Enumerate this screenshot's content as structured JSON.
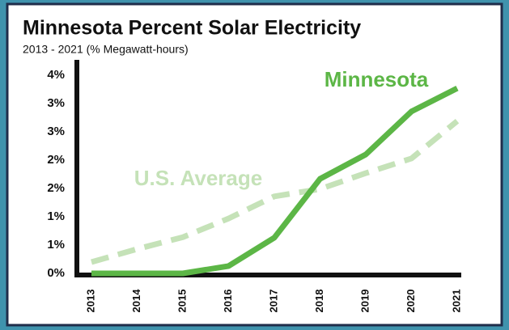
{
  "chart_data": {
    "type": "line",
    "title": "Minnesota Percent Solar Electricity",
    "subtitle": "2013 - 2021 (% Megawatt-hours)",
    "categories": [
      "2013",
      "2014",
      "2015",
      "2016",
      "2017",
      "2018",
      "2019",
      "2020",
      "2021"
    ],
    "series": [
      {
        "name": "Minnesota",
        "color": "#5cb646",
        "dashed": false,
        "values": [
          0,
          0,
          0,
          0.13,
          0.63,
          1.67,
          2.1,
          2.86,
          3.27
        ]
      },
      {
        "name": "U.S. Average",
        "color": "#c5e2b8",
        "dashed": true,
        "values": [
          0.2,
          0.43,
          0.64,
          0.97,
          1.36,
          1.49,
          1.77,
          2.03,
          2.69
        ]
      }
    ],
    "ylim": [
      0,
      3.5
    ],
    "yticks": [
      {
        "value": 0,
        "label": "0%"
      },
      {
        "value": 0.5,
        "label": "1%"
      },
      {
        "value": 1,
        "label": "1%"
      },
      {
        "value": 1.5,
        "label": "2%"
      },
      {
        "value": 2,
        "label": "2%"
      },
      {
        "value": 2.5,
        "label": "3%"
      },
      {
        "value": 3,
        "label": "3%"
      },
      {
        "value": 3.5,
        "label": "4%"
      }
    ],
    "grid": false
  }
}
